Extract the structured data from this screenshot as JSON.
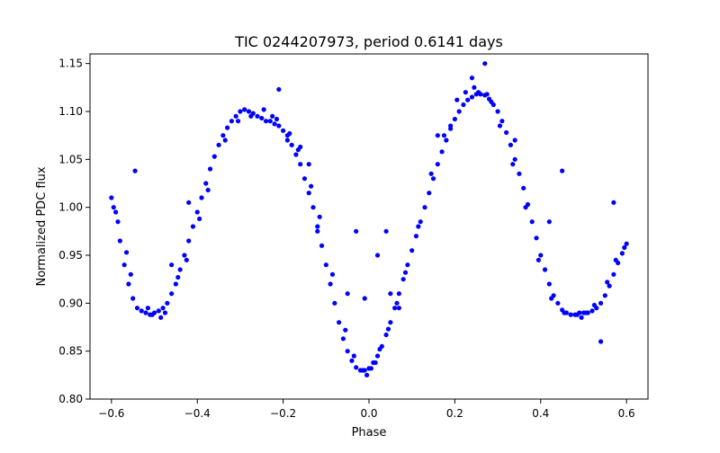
{
  "chart_data": {
    "type": "scatter",
    "title": "TIC 0244207973, period 0.6141 days",
    "xlabel": "Phase",
    "ylabel": "Normalized PDC flux",
    "xlim": [
      -0.65,
      0.65
    ],
    "ylim": [
      0.8,
      1.16
    ],
    "xticks": [
      -0.6,
      -0.4,
      -0.2,
      0.0,
      0.2,
      0.4,
      0.6
    ],
    "xtick_labels": [
      "−0.6",
      "−0.4",
      "−0.2",
      "0.0",
      "0.2",
      "0.4",
      "0.6"
    ],
    "yticks": [
      0.8,
      0.85,
      0.9,
      0.95,
      1.0,
      1.05,
      1.1,
      1.15
    ],
    "ytick_labels": [
      "0.80",
      "0.85",
      "0.90",
      "0.95",
      "1.00",
      "1.05",
      "1.10",
      "1.15"
    ],
    "grid": false,
    "marker_color": "#0000ff",
    "series": [
      {
        "x": [
          -0.6,
          -0.59,
          -0.58,
          -0.57,
          -0.56,
          -0.55,
          -0.54,
          -0.53,
          -0.52,
          -0.51,
          -0.5,
          -0.49,
          -0.48,
          -0.47,
          -0.46,
          -0.45,
          -0.44,
          -0.43,
          -0.42,
          -0.41,
          -0.4,
          -0.39,
          -0.38,
          -0.37,
          -0.36,
          -0.35,
          -0.34,
          -0.33,
          -0.32,
          -0.31,
          -0.3,
          -0.29,
          -0.28,
          -0.27,
          -0.26,
          -0.25,
          -0.24,
          -0.23,
          -0.22,
          -0.21,
          -0.2,
          -0.19,
          -0.18,
          -0.17,
          -0.16,
          -0.15,
          -0.14,
          -0.13,
          -0.12,
          -0.11,
          -0.1,
          -0.09,
          -0.08,
          -0.07,
          -0.06,
          -0.05,
          -0.04,
          -0.03,
          -0.02,
          -0.01,
          0.0,
          0.01,
          0.02,
          0.03,
          0.04,
          0.05,
          0.06,
          0.07,
          0.08,
          0.09,
          0.1,
          0.11,
          0.12,
          0.13,
          0.14,
          0.15,
          0.16,
          0.17,
          0.18,
          0.19,
          0.2,
          0.21,
          0.22,
          0.23,
          0.24,
          0.25,
          0.26,
          0.27,
          0.28,
          0.29,
          0.3,
          0.31,
          0.32,
          0.33,
          0.34,
          0.35,
          0.36,
          0.37,
          0.38,
          0.39,
          0.4,
          0.41,
          0.42,
          0.43,
          0.44,
          0.45,
          0.46,
          0.47,
          0.48,
          0.49,
          0.5,
          0.51,
          0.52,
          0.53,
          0.54,
          0.55,
          0.56,
          0.57,
          0.58,
          0.59,
          0.6,
          -0.595,
          -0.585,
          -0.565,
          -0.555,
          -0.515,
          -0.505,
          -0.485,
          -0.475,
          -0.445,
          -0.425,
          -0.395,
          -0.375,
          -0.335,
          -0.305,
          -0.275,
          -0.245,
          -0.225,
          -0.215,
          -0.185,
          -0.165,
          -0.135,
          -0.115,
          -0.085,
          -0.055,
          -0.035,
          -0.015,
          -0.005,
          0.005,
          0.015,
          0.025,
          0.045,
          0.065,
          0.085,
          0.115,
          0.145,
          0.175,
          0.205,
          0.225,
          0.245,
          0.255,
          0.275,
          0.285,
          0.305,
          0.335,
          0.365,
          0.395,
          0.425,
          0.455,
          0.485,
          0.495,
          0.505,
          0.525,
          0.555,
          0.575,
          0.595,
          -0.545,
          -0.46,
          -0.42,
          -0.21,
          -0.19,
          -0.16,
          -0.14,
          -0.12,
          -0.05,
          -0.03,
          -0.01,
          0.02,
          0.04,
          0.05,
          0.07,
          0.16,
          0.19,
          0.24,
          0.27,
          0.34,
          0.42,
          0.45,
          0.54,
          0.57
        ],
        "y": [
          1.01,
          0.995,
          0.965,
          0.94,
          0.92,
          0.905,
          0.895,
          0.892,
          0.89,
          0.888,
          0.89,
          0.892,
          0.895,
          0.9,
          0.91,
          0.92,
          0.935,
          0.95,
          0.965,
          0.98,
          0.995,
          1.01,
          1.025,
          1.04,
          1.053,
          1.065,
          1.075,
          1.083,
          1.09,
          1.095,
          1.1,
          1.102,
          1.1,
          1.098,
          1.095,
          1.093,
          1.09,
          1.09,
          1.087,
          1.085,
          1.08,
          1.075,
          1.065,
          1.055,
          1.045,
          1.03,
          1.015,
          1.0,
          0.98,
          0.96,
          0.94,
          0.92,
          0.9,
          0.88,
          0.863,
          0.85,
          0.84,
          0.833,
          0.83,
          0.83,
          0.832,
          0.838,
          0.845,
          0.855,
          0.867,
          0.88,
          0.895,
          0.91,
          0.925,
          0.94,
          0.955,
          0.97,
          0.985,
          1.0,
          1.015,
          1.03,
          1.045,
          1.058,
          1.07,
          1.082,
          1.092,
          1.1,
          1.107,
          1.112,
          1.115,
          1.118,
          1.118,
          1.117,
          1.113,
          1.107,
          1.1,
          1.09,
          1.078,
          1.065,
          1.05,
          1.035,
          1.02,
          1.003,
          0.985,
          0.968,
          0.95,
          0.935,
          0.92,
          0.908,
          0.9,
          0.893,
          0.89,
          0.888,
          0.888,
          0.89,
          0.89,
          0.89,
          0.892,
          0.895,
          0.9,
          0.908,
          0.918,
          0.93,
          0.942,
          0.952,
          0.962,
          1.0,
          0.985,
          0.953,
          0.93,
          0.895,
          0.888,
          0.885,
          0.89,
          0.927,
          0.945,
          0.988,
          1.018,
          1.07,
          1.09,
          1.095,
          1.102,
          1.095,
          1.092,
          1.077,
          1.06,
          1.022,
          0.99,
          0.93,
          0.872,
          0.845,
          0.83,
          0.825,
          0.832,
          0.838,
          0.852,
          0.873,
          0.9,
          0.932,
          0.98,
          1.035,
          1.075,
          1.112,
          1.12,
          1.125,
          1.12,
          1.118,
          1.11,
          1.085,
          1.045,
          1.0,
          0.945,
          0.905,
          0.89,
          0.888,
          0.885,
          0.89,
          0.898,
          0.922,
          0.945,
          0.958,
          1.038,
          0.94,
          1.005,
          1.123,
          1.07,
          1.063,
          1.045,
          0.975,
          0.91,
          0.975,
          0.905,
          0.95,
          0.975,
          0.91,
          0.895,
          1.075,
          1.085,
          1.135,
          1.15,
          1.07,
          0.985,
          1.038,
          0.86,
          1.005
        ]
      }
    ]
  }
}
